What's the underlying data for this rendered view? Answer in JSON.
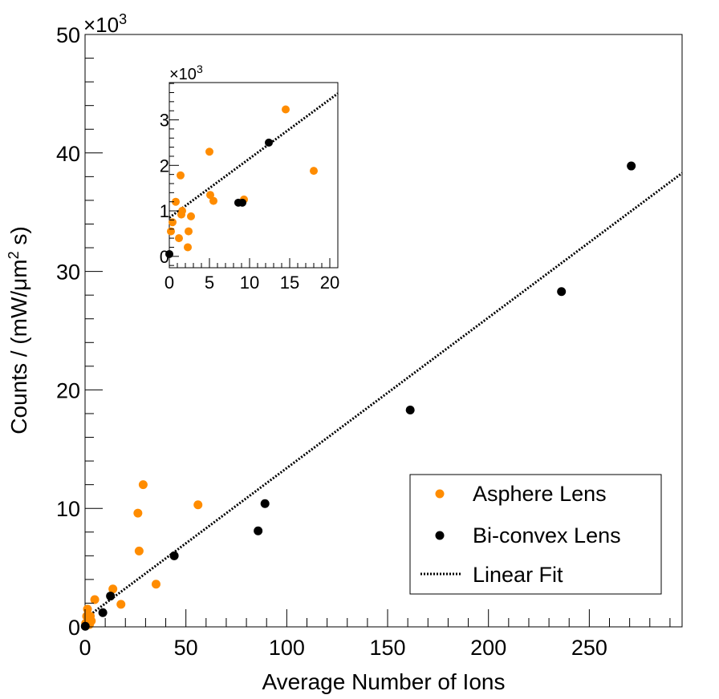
{
  "chart_data": [
    {
      "type": "scatter",
      "role": "main",
      "xlabel": "Average Number of Ions",
      "ylabel": "Counts / (mW/μm² s)",
      "ylabel_parts": {
        "before": "Counts / (mW/μm",
        "sup": "2",
        "after": " s)"
      },
      "y_multiplier": {
        "base": "×10",
        "exp": "3"
      },
      "xlim": [
        0,
        296
      ],
      "ylim": [
        0,
        50
      ],
      "x_ticks": [
        0,
        50,
        100,
        150,
        200,
        250
      ],
      "y_ticks": [
        0,
        10,
        20,
        30,
        40,
        50
      ],
      "grid": false,
      "legend": {
        "position": "bottom-right"
      },
      "series": [
        {
          "name": "Asphere Lens",
          "color": "#ff8c00",
          "marker": "circle",
          "points": [
            [
              0.3,
              0.3
            ],
            [
              0.8,
              0.9
            ],
            [
              1.2,
              1.5
            ],
            [
              1.6,
              0.5
            ],
            [
              2.2,
              0.2
            ],
            [
              2.6,
              0.9
            ],
            [
              3.1,
              0.5
            ],
            [
              4.8,
              2.3
            ],
            [
              13.8,
              3.2
            ],
            [
              17.8,
              1.9
            ],
            [
              26.2,
              9.6
            ],
            [
              26.8,
              6.4
            ],
            [
              28.8,
              12.0
            ],
            [
              35.2,
              3.6
            ],
            [
              56.0,
              10.3
            ]
          ]
        },
        {
          "name": "Bi-convex Lens",
          "color": "#000000",
          "marker": "circle",
          "points": [
            [
              0.1,
              0.05
            ],
            [
              8.8,
              1.2
            ],
            [
              12.6,
              2.6
            ],
            [
              44.2,
              6.0
            ],
            [
              85.8,
              8.1
            ],
            [
              89.2,
              10.4
            ],
            [
              161.2,
              18.3
            ],
            [
              236.2,
              28.3
            ],
            [
              270.8,
              38.9
            ]
          ]
        },
        {
          "name": "Linear Fit",
          "color": "#000000",
          "line_style": "dotted",
          "line": [
            [
              0,
              0.7
            ],
            [
              296,
              38.3
            ]
          ]
        }
      ]
    },
    {
      "type": "scatter",
      "role": "inset",
      "xlim": [
        0,
        21
      ],
      "ylim": [
        -0.25,
        3.82
      ],
      "x_ticks": [
        0,
        5,
        10,
        15,
        20
      ],
      "y_ticks": [
        0,
        1,
        2,
        3
      ],
      "y_multiplier": {
        "base": "×10",
        "exp": "3"
      },
      "series": [
        {
          "name": "Asphere Lens",
          "color": "#ff8c00",
          "points": [
            [
              0.2,
              0.55
            ],
            [
              0.4,
              0.75
            ],
            [
              0.8,
              1.2
            ],
            [
              1.2,
              0.4
            ],
            [
              1.4,
              1.78
            ],
            [
              1.5,
              0.92
            ],
            [
              1.6,
              1.0
            ],
            [
              2.3,
              0.2
            ],
            [
              2.4,
              0.55
            ],
            [
              2.7,
              0.88
            ],
            [
              5.0,
              2.3
            ],
            [
              5.1,
              1.35
            ],
            [
              5.5,
              1.22
            ],
            [
              9.3,
              1.25
            ],
            [
              14.5,
              3.23
            ],
            [
              18.0,
              1.88
            ]
          ]
        },
        {
          "name": "Bi-convex Lens",
          "color": "#000000",
          "points": [
            [
              0.0,
              0.05
            ],
            [
              8.6,
              1.18
            ],
            [
              9.1,
              1.18
            ],
            [
              12.4,
              2.5
            ]
          ]
        },
        {
          "name": "Linear Fit",
          "color": "#000000",
          "line_style": "dotted",
          "line": [
            [
              0,
              0.85
            ],
            [
              21,
              3.58
            ]
          ]
        }
      ]
    }
  ]
}
